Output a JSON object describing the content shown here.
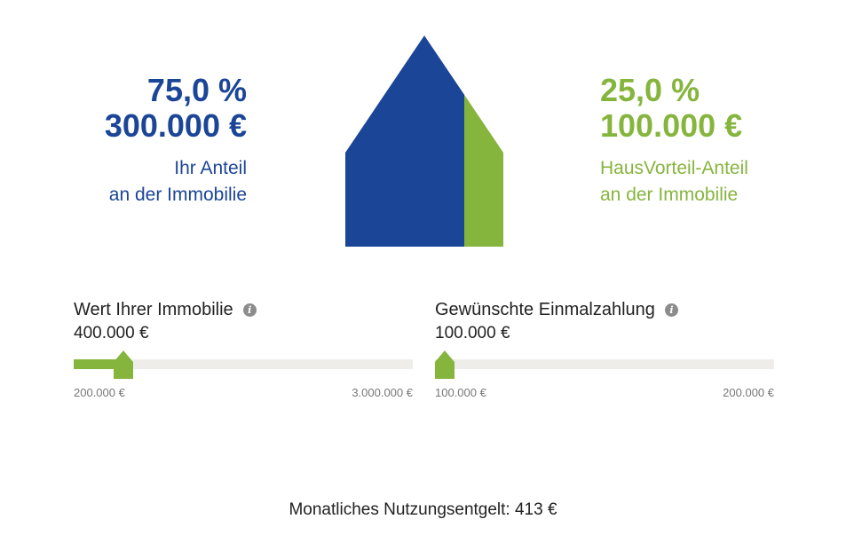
{
  "colors": {
    "blue": "#1b4597",
    "green": "#86b53e"
  },
  "owner_share": {
    "percent": "75,0 %",
    "amount": "300.000 €",
    "label_line1": "Ihr Anteil",
    "label_line2": "an der Immobilie",
    "fraction": 0.75
  },
  "partner_share": {
    "percent": "25,0 %",
    "amount": "100.000 €",
    "label_line1": "HausVorteil-Anteil",
    "label_line2": "an der Immobilie",
    "fraction": 0.25
  },
  "sliders": {
    "property_value": {
      "label": "Wert Ihrer Immobilie",
      "value_text": "400.000 €",
      "min_text": "200.000 €",
      "max_text": "3.000.000 €",
      "value": 400000,
      "min": 200000,
      "max": 3000000,
      "info_icon": "info-icon"
    },
    "one_time_payment": {
      "label": "Gewünschte Einmalzahlung",
      "value_text": "100.000 €",
      "min_text": "100.000 €",
      "max_text": "200.000 €",
      "value": 100000,
      "min": 100000,
      "max": 200000,
      "info_icon": "info-icon"
    }
  },
  "monthly_fee": "Monatliches Nutzungsentgelt: 413 €"
}
